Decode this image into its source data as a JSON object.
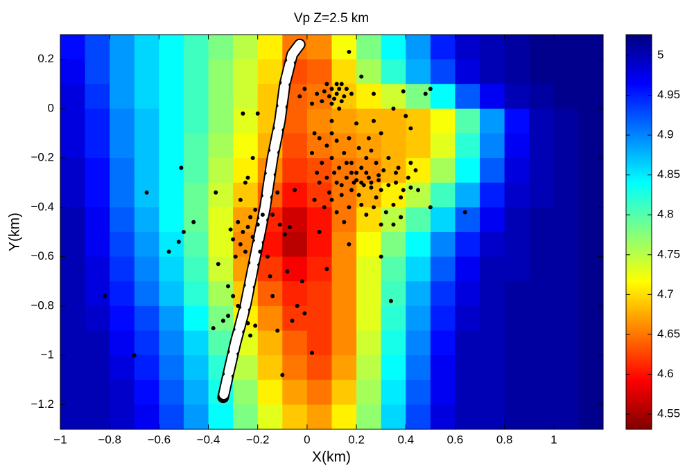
{
  "chart_data": {
    "type": "heatmap",
    "title": "Vp Z=2.5 km",
    "x_label": "X(km)",
    "y_label": "Y(km)",
    "colormap": "jet",
    "colormap_reversed": true,
    "xlim": [
      -1,
      1.2
    ],
    "ylim": [
      -1.3,
      0.3
    ],
    "clim": [
      4.531,
      5.026
    ],
    "xticks": [
      {
        "value": -1,
        "label": "−1"
      },
      {
        "value": -0.8,
        "label": "−0.8"
      },
      {
        "value": -0.6,
        "label": "−0.6"
      },
      {
        "value": -0.4,
        "label": "−0.4"
      },
      {
        "value": -0.2,
        "label": "−0.2"
      },
      0,
      0.2,
      0.4,
      0.6,
      0.8,
      1
    ],
    "yticks": [
      0.2,
      0,
      {
        "value": -0.2,
        "label": "−0.2"
      },
      {
        "value": -0.4,
        "label": "−0.4"
      },
      {
        "value": -0.6,
        "label": "−0.6"
      },
      {
        "value": -0.8,
        "label": "−0.8"
      },
      {
        "value": -1,
        "label": "−1"
      },
      {
        "value": -1.2,
        "label": "−1.2"
      }
    ],
    "cticks": [
      4.55,
      4.6,
      4.65,
      4.7,
      4.75,
      4.8,
      4.85,
      4.9,
      4.95,
      5
    ],
    "x": [
      -0.95,
      -0.85,
      -0.75,
      -0.65,
      -0.55,
      -0.45,
      -0.35,
      -0.25,
      -0.15,
      -0.05,
      0.05,
      0.15,
      0.25,
      0.35,
      0.45,
      0.55,
      0.65,
      0.75,
      0.85,
      0.95,
      1.05,
      1.15
    ],
    "y": [
      0.25,
      0.15,
      0.05,
      -0.05,
      -0.15,
      -0.25,
      -0.35,
      -0.45,
      -0.55,
      -0.65,
      -0.75,
      -0.85,
      -0.95,
      -1.05,
      -1.15,
      -1.25
    ],
    "z": [
      [
        4.96,
        4.93,
        4.89,
        4.86,
        4.84,
        4.81,
        4.78,
        4.75,
        4.71,
        4.65,
        4.66,
        4.72,
        4.78,
        4.84,
        4.89,
        4.95,
        4.99,
        5.0,
        5.01,
        5.02,
        5.02,
        5.02
      ],
      [
        4.97,
        4.93,
        4.89,
        4.86,
        4.84,
        4.81,
        4.77,
        4.74,
        4.7,
        4.63,
        4.64,
        4.7,
        4.76,
        4.82,
        4.88,
        4.93,
        4.98,
        5.0,
        5.01,
        5.02,
        5.02,
        5.02
      ],
      [
        4.98,
        4.94,
        4.89,
        4.86,
        4.84,
        4.81,
        4.77,
        4.74,
        4.69,
        4.64,
        4.65,
        4.69,
        4.71,
        4.74,
        4.78,
        4.84,
        4.92,
        4.97,
        5.0,
        5.01,
        5.02,
        5.02
      ],
      [
        4.98,
        4.95,
        4.9,
        4.87,
        4.84,
        4.81,
        4.77,
        4.73,
        4.69,
        4.64,
        4.66,
        4.67,
        4.68,
        4.68,
        4.69,
        4.72,
        4.8,
        4.89,
        4.96,
        5.0,
        5.01,
        5.02
      ],
      [
        4.98,
        4.95,
        4.9,
        4.87,
        4.84,
        4.8,
        4.76,
        4.72,
        4.68,
        4.63,
        4.65,
        4.66,
        4.67,
        4.68,
        4.69,
        4.73,
        4.82,
        4.9,
        4.97,
        5.0,
        5.01,
        5.02
      ],
      [
        4.99,
        4.96,
        4.91,
        4.87,
        4.84,
        4.8,
        4.75,
        4.71,
        4.66,
        4.62,
        4.63,
        4.65,
        4.66,
        4.68,
        4.71,
        4.76,
        4.84,
        4.92,
        4.98,
        5.0,
        5.01,
        5.02
      ],
      [
        4.99,
        4.96,
        4.91,
        4.87,
        4.84,
        4.79,
        4.74,
        4.69,
        4.64,
        4.6,
        4.62,
        4.65,
        4.68,
        4.71,
        4.75,
        4.81,
        4.88,
        4.95,
        4.99,
        5.0,
        5.01,
        5.02
      ],
      [
        5.0,
        4.97,
        4.92,
        4.88,
        4.84,
        4.79,
        4.73,
        4.67,
        4.61,
        4.57,
        4.6,
        4.65,
        4.7,
        4.75,
        4.8,
        4.86,
        4.92,
        4.97,
        5.0,
        5.01,
        5.01,
        5.02
      ],
      [
        5.0,
        4.97,
        4.93,
        4.89,
        4.85,
        4.8,
        4.73,
        4.66,
        4.6,
        4.56,
        4.6,
        4.66,
        4.72,
        4.78,
        4.84,
        4.9,
        4.95,
        4.99,
        5.0,
        5.01,
        5.01,
        5.02
      ],
      [
        5.0,
        4.98,
        4.94,
        4.9,
        4.86,
        4.81,
        4.74,
        4.67,
        4.62,
        4.59,
        4.61,
        4.66,
        4.73,
        4.8,
        4.86,
        4.92,
        4.97,
        5.0,
        5.0,
        5.01,
        5.01,
        5.02
      ],
      [
        5.0,
        4.98,
        4.95,
        4.91,
        4.87,
        4.82,
        4.76,
        4.69,
        4.64,
        4.61,
        4.62,
        4.66,
        4.73,
        4.81,
        4.88,
        4.94,
        4.98,
        5.0,
        5.01,
        5.01,
        5.01,
        5.02
      ],
      [
        5.0,
        4.99,
        4.96,
        4.93,
        4.89,
        4.84,
        4.78,
        4.71,
        4.66,
        4.62,
        4.62,
        4.66,
        4.73,
        4.82,
        4.89,
        4.95,
        4.99,
        5.0,
        5.01,
        5.01,
        5.01,
        5.02
      ],
      [
        5.0,
        5.0,
        4.97,
        4.94,
        4.9,
        4.86,
        4.8,
        4.73,
        4.68,
        4.64,
        4.62,
        4.66,
        4.74,
        4.83,
        4.9,
        4.96,
        5.0,
        5.0,
        5.01,
        5.01,
        5.01,
        5.02
      ],
      [
        5.0,
        5.0,
        4.98,
        4.95,
        4.91,
        4.87,
        4.82,
        4.75,
        4.69,
        4.65,
        4.63,
        4.67,
        4.75,
        4.84,
        4.91,
        4.97,
        5.0,
        5.0,
        5.01,
        5.01,
        5.01,
        5.02
      ],
      [
        5.0,
        5.0,
        4.99,
        4.96,
        4.92,
        4.88,
        4.83,
        4.77,
        4.71,
        4.67,
        4.65,
        4.69,
        4.76,
        4.85,
        4.92,
        4.97,
        5.0,
        5.0,
        5.01,
        5.01,
        5.01,
        5.02
      ],
      [
        5.0,
        5.0,
        4.99,
        4.97,
        4.93,
        4.89,
        4.84,
        4.78,
        4.73,
        4.69,
        4.67,
        4.71,
        4.77,
        4.86,
        4.93,
        4.98,
        5.0,
        5.0,
        5.01,
        5.01,
        5.01,
        5.02
      ]
    ],
    "well_path": {
      "x": [
        -0.03,
        -0.06,
        -0.09,
        -0.11,
        -0.14,
        -0.17,
        -0.21,
        -0.25,
        -0.29,
        -0.32,
        -0.34
      ],
      "y": [
        0.26,
        0.22,
        0.1,
        -0.05,
        -0.2,
        -0.4,
        -0.6,
        -0.8,
        -0.95,
        -1.08,
        -1.17
      ]
    },
    "points": {
      "x": [
        -0.82,
        -0.7,
        -0.65,
        -0.51,
        -0.56,
        -0.46,
        -0.5,
        -0.52,
        0.64,
        0.17,
        0.34,
        -0.1,
        0.02,
        0.5,
        0.48,
        0.39,
        0.27,
        0.22,
        0.5,
        0.3,
        0.17,
        0.05,
        -0.02,
        -0.04,
        -0.01,
        0.08,
        -0.37,
        -0.36,
        -0.38,
        0.08,
        0.1,
        0.12,
        0.14,
        0.09,
        0.11,
        0.13,
        0.15,
        0.07,
        0.12,
        0.1,
        0.16,
        0.06,
        0.14,
        0.13,
        0.04,
        0.18,
        -0.01,
        -0.03,
        0.02,
        0.05,
        0.08,
        0.12,
        0.15,
        0.1,
        0.06,
        0.13,
        0.18,
        0.2,
        0.22,
        0.25,
        0.23,
        0.19,
        0.16,
        0.12,
        0.08,
        0.05,
        0.09,
        0.14,
        0.18,
        0.21,
        0.26,
        0.29,
        0.31,
        0.28,
        0.24,
        0.3,
        0.33,
        0.36,
        0.39,
        0.42,
        0.45,
        0.41,
        0.38,
        0.35,
        0.32,
        0.27,
        0.22,
        0.17,
        0.12,
        0.07,
        0.03,
        0.04,
        0.02,
        0.1,
        0.17,
        0.21,
        0.26,
        0.33,
        0.37,
        0.42,
        0.44,
        0.28,
        0.24,
        0.35,
        0.38,
        0.3,
        0.15,
        0.1,
        0.2,
        0.22,
        0.24,
        0.26,
        0.18,
        0.14,
        0.29,
        0.16,
        0.11,
        0.36,
        0.4,
        0.42,
        0.35,
        0.3,
        0.27,
        0.25,
        0.1,
        0.03,
        0.2,
        -0.28,
        -0.26,
        -0.24,
        -0.22,
        -0.27,
        -0.25,
        -0.23,
        -0.2,
        -0.18,
        -0.21,
        -0.19,
        -0.16,
        -0.31,
        -0.3,
        -0.29,
        -0.32,
        -0.3,
        -0.28,
        -0.24,
        -0.23,
        -0.21,
        -0.32,
        -0.34,
        -0.22,
        -0.25,
        -0.27,
        -0.2,
        -0.26,
        -0.24,
        -0.11,
        -0.09,
        -0.07,
        -0.12,
        -0.14,
        -0.05,
        -0.08,
        -0.14,
        -0.12,
        -0.06,
        -0.15
      ],
      "y": [
        -0.76,
        -1.0,
        -0.34,
        -0.24,
        -0.58,
        -0.46,
        -0.5,
        -0.54,
        -0.42,
        0.23,
        -0.78,
        -1.08,
        -0.99,
        0.08,
        0.06,
        0.07,
        0.06,
        0.13,
        -0.4,
        -0.6,
        -0.55,
        -0.5,
        -0.7,
        -0.8,
        -0.83,
        -0.65,
        -0.34,
        -0.63,
        -0.89,
        0.1,
        0.08,
        0.06,
        0.1,
        0.05,
        0.04,
        0.08,
        0.05,
        0.07,
        0.1,
        0.02,
        0.08,
        0.03,
        0.03,
        0.0,
        0.06,
        0.06,
        0.08,
        0.05,
        0.02,
        -0.12,
        -0.15,
        -0.13,
        -0.18,
        -0.2,
        -0.22,
        -0.24,
        -0.22,
        -0.26,
        -0.24,
        -0.28,
        -0.31,
        -0.3,
        -0.28,
        -0.3,
        -0.28,
        -0.3,
        -0.34,
        -0.35,
        -0.33,
        -0.35,
        -0.32,
        -0.29,
        -0.25,
        -0.22,
        -0.2,
        -0.33,
        -0.31,
        -0.3,
        -0.33,
        -0.32,
        -0.33,
        -0.28,
        -0.36,
        -0.39,
        -0.42,
        -0.4,
        -0.39,
        -0.4,
        -0.42,
        -0.4,
        -0.37,
        -0.26,
        -0.18,
        -0.1,
        -0.12,
        -0.16,
        -0.17,
        -0.2,
        -0.24,
        -0.22,
        -0.25,
        -0.36,
        -0.43,
        -0.47,
        -0.44,
        -0.47,
        -0.46,
        -0.37,
        -0.29,
        -0.3,
        -0.26,
        -0.3,
        -0.26,
        -0.31,
        -0.27,
        -0.22,
        -0.26,
        -0.26,
        -0.03,
        -0.08,
        0.0,
        -0.1,
        -0.05,
        -0.12,
        -0.05,
        -0.1,
        -0.06,
        -0.46,
        -0.5,
        -0.48,
        -0.52,
        -0.55,
        -0.58,
        -0.44,
        -0.47,
        -0.43,
        -0.41,
        -0.58,
        -0.6,
        -0.49,
        -0.53,
        -0.6,
        -0.72,
        -0.76,
        -0.8,
        -0.87,
        -0.92,
        -0.88,
        -0.84,
        -0.86,
        -0.2,
        -0.3,
        -0.37,
        -0.02,
        -0.02,
        -0.28,
        -0.47,
        -0.51,
        -0.48,
        -0.34,
        -0.43,
        -0.33,
        -0.66,
        -0.76,
        -0.9,
        -0.86,
        -0.68
      ]
    }
  }
}
